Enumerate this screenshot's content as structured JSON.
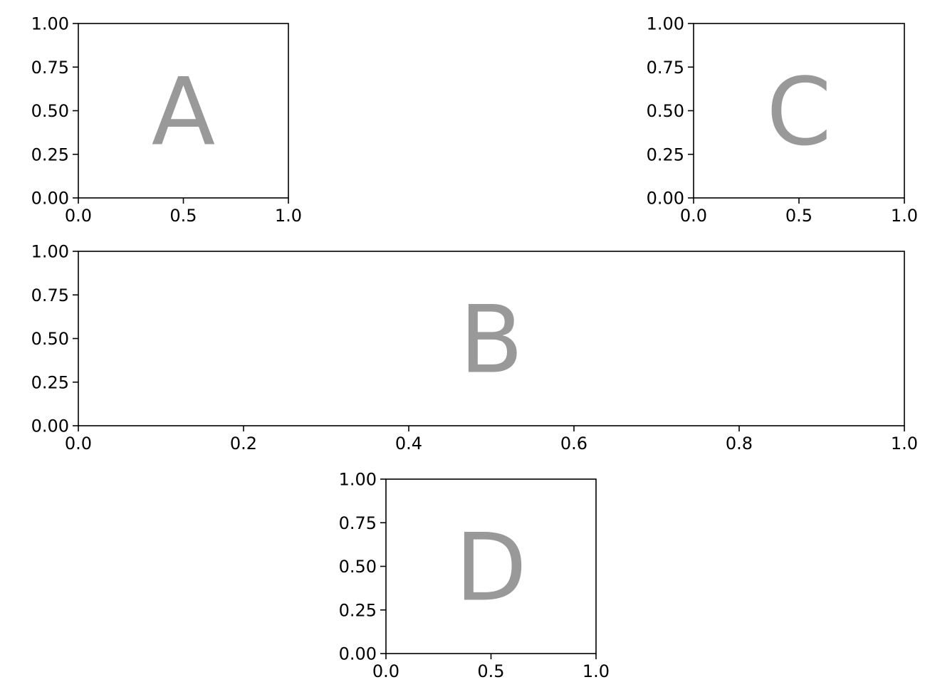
{
  "chart_data": [
    {
      "type": "scatter",
      "panel": "A",
      "annotation": "A",
      "title": "",
      "xlabel": "",
      "ylabel": "",
      "xlim": [
        0.0,
        1.0
      ],
      "ylim": [
        0.0,
        1.0
      ],
      "xticks": [
        0.0,
        0.5,
        1.0
      ],
      "xtick_labels": [
        "0.0",
        "0.5",
        "1.0"
      ],
      "yticks": [
        0.0,
        0.25,
        0.5,
        0.75,
        1.0
      ],
      "ytick_labels": [
        "0.00",
        "0.25",
        "0.50",
        "0.75",
        "1.00"
      ],
      "grid": false,
      "series": []
    },
    {
      "type": "scatter",
      "panel": "C",
      "annotation": "C",
      "title": "",
      "xlabel": "",
      "ylabel": "",
      "xlim": [
        0.0,
        1.0
      ],
      "ylim": [
        0.0,
        1.0
      ],
      "xticks": [
        0.0,
        0.5,
        1.0
      ],
      "xtick_labels": [
        "0.0",
        "0.5",
        "1.0"
      ],
      "yticks": [
        0.0,
        0.25,
        0.5,
        0.75,
        1.0
      ],
      "ytick_labels": [
        "0.00",
        "0.25",
        "0.50",
        "0.75",
        "1.00"
      ],
      "grid": false,
      "series": []
    },
    {
      "type": "scatter",
      "panel": "B",
      "annotation": "B",
      "title": "",
      "xlabel": "",
      "ylabel": "",
      "xlim": [
        0.0,
        1.0
      ],
      "ylim": [
        0.0,
        1.0
      ],
      "xticks": [
        0.0,
        0.2,
        0.4,
        0.6,
        0.8,
        1.0
      ],
      "xtick_labels": [
        "0.0",
        "0.2",
        "0.4",
        "0.6",
        "0.8",
        "1.0"
      ],
      "yticks": [
        0.0,
        0.25,
        0.5,
        0.75,
        1.0
      ],
      "ytick_labels": [
        "0.00",
        "0.25",
        "0.50",
        "0.75",
        "1.00"
      ],
      "grid": false,
      "series": []
    },
    {
      "type": "scatter",
      "panel": "D",
      "annotation": "D",
      "title": "",
      "xlabel": "",
      "ylabel": "",
      "xlim": [
        0.0,
        1.0
      ],
      "ylim": [
        0.0,
        1.0
      ],
      "xticks": [
        0.0,
        0.5,
        1.0
      ],
      "xtick_labels": [
        "0.0",
        "0.5",
        "1.0"
      ],
      "yticks": [
        0.0,
        0.25,
        0.5,
        0.75,
        1.0
      ],
      "ytick_labels": [
        "0.00",
        "0.25",
        "0.50",
        "0.75",
        "1.00"
      ],
      "grid": false,
      "series": []
    }
  ],
  "colors": {
    "background": "#ffffff",
    "axes": "#000000",
    "annotation": "#999999"
  }
}
